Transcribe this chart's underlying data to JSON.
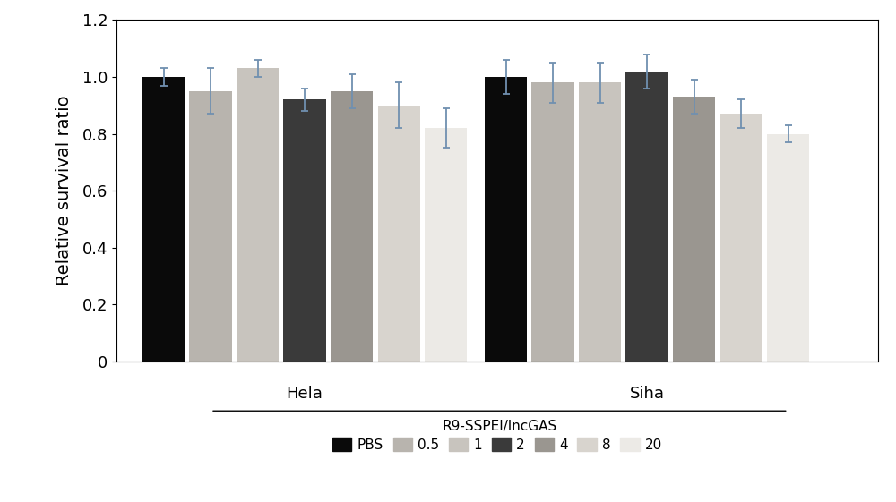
{
  "hela_values": [
    1.0,
    0.95,
    1.03,
    0.92,
    0.95,
    0.9,
    0.82
  ],
  "siha_values": [
    1.0,
    0.98,
    0.98,
    1.02,
    0.93,
    0.87,
    0.8
  ],
  "hela_errors": [
    0.03,
    0.08,
    0.03,
    0.04,
    0.06,
    0.08,
    0.07
  ],
  "siha_errors": [
    0.06,
    0.07,
    0.07,
    0.06,
    0.06,
    0.05,
    0.03
  ],
  "bar_colors": [
    "#0a0a0a",
    "#b8b4ae",
    "#c8c4be",
    "#3a3a3a",
    "#9a9690",
    "#d8d4ce",
    "#eceae6"
  ],
  "labels": [
    "PBS",
    "0.5",
    "1",
    "2",
    "4",
    "8",
    "20"
  ],
  "ylabel": "Relative survival ratio",
  "ylim": [
    0,
    1.2
  ],
  "yticks": [
    0,
    0.2,
    0.4,
    0.6,
    0.8,
    1.0,
    1.2
  ],
  "group_labels": [
    "Hela",
    "Siha"
  ],
  "bracket_label": "R9-SSPEI/lncGAS",
  "error_color": "#7090b0",
  "background_color": "#ffffff"
}
